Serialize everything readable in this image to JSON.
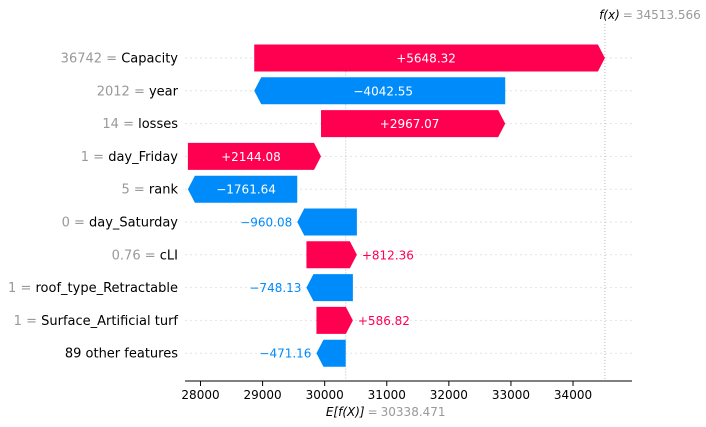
{
  "chart_data": {
    "type": "waterfall",
    "base_value": 30338.471,
    "output_value": 34513.566,
    "fx_name": "f(x)",
    "fx_value": "34513.566",
    "ex_name": "E[f(X)]",
    "ex_value": "30338.471",
    "xlim": [
      27750,
      34950
    ],
    "ticks": [
      28000,
      29000,
      30000,
      31000,
      32000,
      33000,
      34000
    ],
    "tick_labels": [
      "28000",
      "29000",
      "30000",
      "31000",
      "32000",
      "33000",
      "34000"
    ],
    "features": [
      {
        "value": "36742",
        "name": "Capacity",
        "contribution": 5648.32,
        "label": "+5648.32",
        "start": 28865.246
      },
      {
        "value": "2012",
        "name": "year",
        "contribution": -4042.55,
        "label": "−4042.55",
        "start": 32907.796
      },
      {
        "value": "14",
        "name": "losses",
        "contribution": 2967.07,
        "label": "+2967.07",
        "start": 29940.726
      },
      {
        "value": "1",
        "name": "day_Friday",
        "contribution": 2144.08,
        "label": "+2144.08",
        "start": 27796.646
      },
      {
        "value": "5",
        "name": "rank",
        "contribution": -1761.64,
        "label": "−1761.64",
        "start": 29558.286
      },
      {
        "value": "0",
        "name": "day_Saturday",
        "contribution": -960.08,
        "label": "−960.08",
        "start": 30518.366
      },
      {
        "value": "0.76",
        "name": "cLI",
        "contribution": 812.36,
        "label": "+812.36",
        "start": 29706.006
      },
      {
        "value": "1",
        "name": "roof_type_Retractable",
        "contribution": -748.13,
        "label": "−748.13",
        "start": 30454.136
      },
      {
        "value": "1",
        "name": "Surface_Artificial turf",
        "contribution": 586.82,
        "label": "+586.82",
        "start": 29867.316
      },
      {
        "value": "",
        "name": "89 other features",
        "contribution": -471.16,
        "label": "−471.16",
        "start": 30338.476
      }
    ],
    "colors": {
      "positive": "#ff0051",
      "negative": "#008bfb",
      "axis": "#000000",
      "gridline": "#cccccc"
    }
  }
}
